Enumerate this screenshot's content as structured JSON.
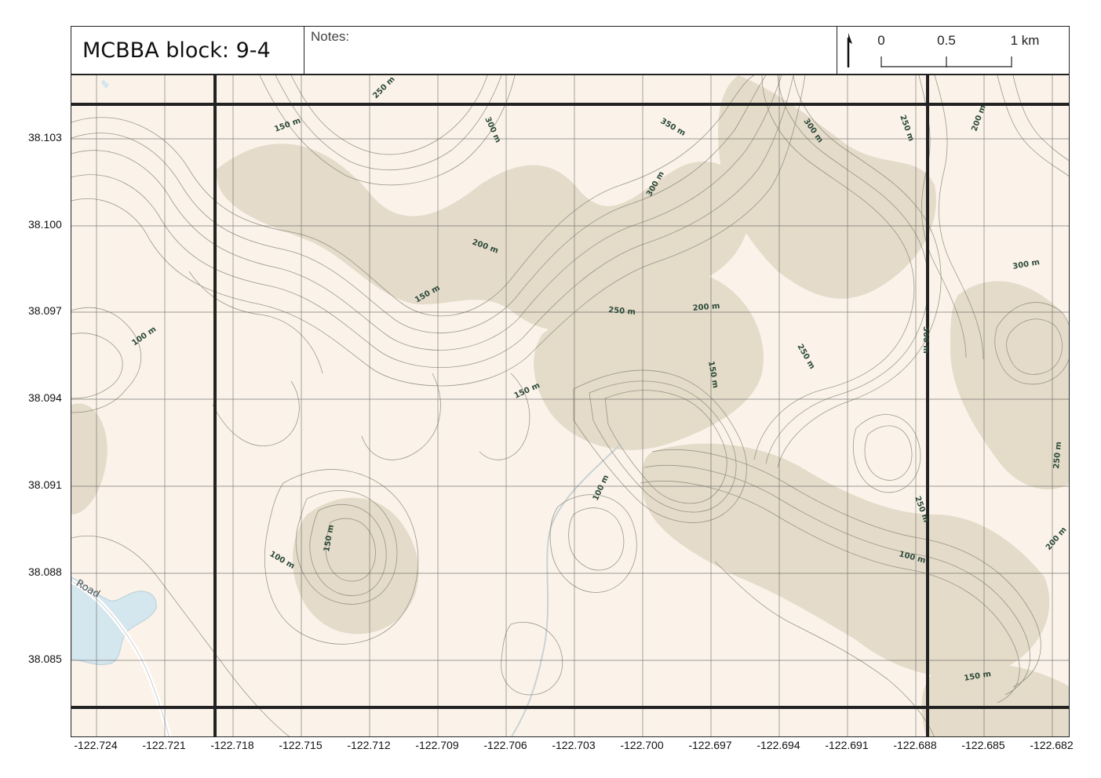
{
  "header": {
    "title": "MCBBA block: 9-4",
    "notes_label": "Notes:",
    "scale_labels": [
      "0",
      "0.5",
      "1 km"
    ]
  },
  "map": {
    "colors": {
      "background": "#fbf3ea",
      "hillshade": "#ddd3bf",
      "contour": "#8a8a7a",
      "water": "#d4e6ee",
      "grid": "#555555",
      "block_border": "#222222"
    },
    "contour_labels": [
      "250 m",
      "150 m",
      "300 m",
      "350 m",
      "300 m",
      "250 m",
      "200 m",
      "300 m",
      "200 m",
      "150 m",
      "100 m",
      "250 m",
      "200 m",
      "300 m",
      "300 m",
      "250 m",
      "150 m",
      "150 m",
      "100 m",
      "150 m",
      "100 m",
      "250 m",
      "250 m",
      "200 m",
      "100 m",
      "150 m"
    ],
    "road_label": "Road",
    "latitudes": [
      "38.103",
      "38.100",
      "38.097",
      "38.094",
      "38.091",
      "38.088",
      "38.085"
    ],
    "longitudes": [
      "-122.724",
      "-122.721",
      "-122.718",
      "-122.715",
      "-122.712",
      "-122.709",
      "-122.706",
      "-122.703",
      "-122.700",
      "-122.697",
      "-122.694",
      "-122.691",
      "-122.688",
      "-122.685",
      "-122.682"
    ]
  }
}
